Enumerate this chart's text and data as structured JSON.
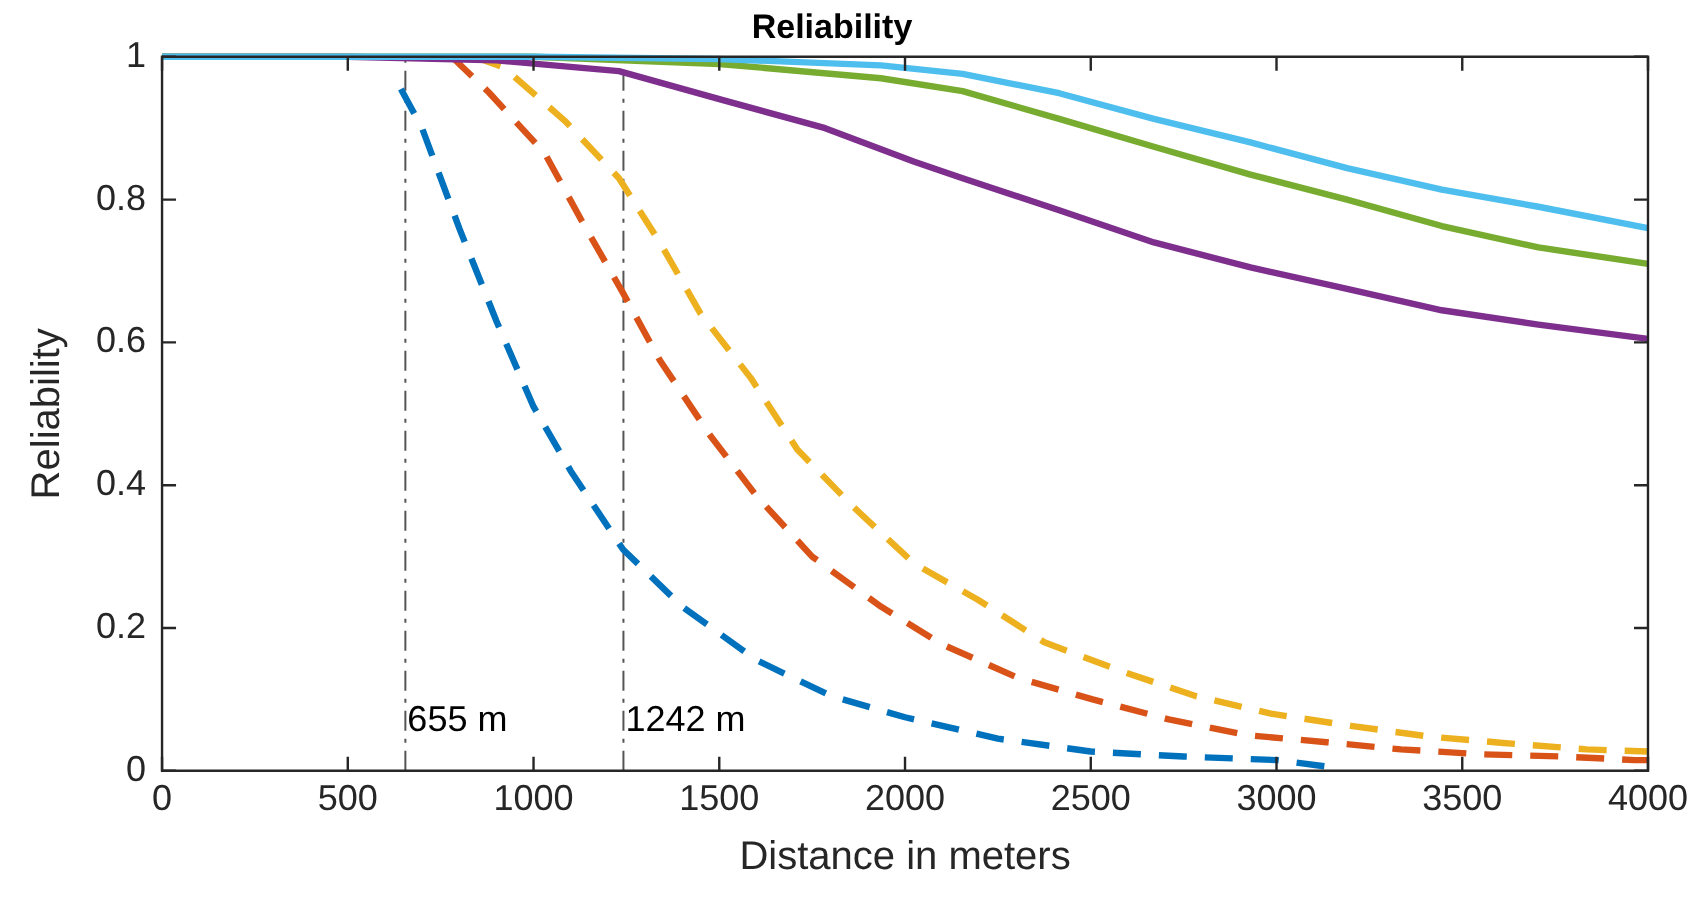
{
  "chart_data": {
    "type": "line",
    "title": "Reliability",
    "xlabel": "Distance in meters",
    "ylabel": "Reliability",
    "xlim": [
      0,
      4000
    ],
    "xticks": [
      0,
      500,
      1000,
      1500,
      2000,
      2500,
      3000,
      3500,
      4000
    ],
    "ylim": [
      0,
      1
    ],
    "yticks": [
      0,
      0.2,
      0.4,
      0.6,
      0.8,
      1
    ],
    "grid": false,
    "legend": false,
    "ref_lines": [
      {
        "axis": "x",
        "value": 655,
        "label": "655 m",
        "color": "#555555",
        "line_style": "dashdot"
      },
      {
        "axis": "x",
        "value": 1242,
        "label": "1242 m",
        "color": "#555555",
        "line_style": "dashdot"
      }
    ],
    "series": [
      {
        "color": "#0072bd",
        "line_style": "dashed",
        "x": [
          643,
          700,
          800,
          900,
          1000,
          1100,
          1241,
          1400,
          1600,
          1800,
          2000,
          2250,
          2500,
          2750,
          3000,
          3150
        ],
        "values": [
          0.955,
          0.9,
          0.76,
          0.63,
          0.51,
          0.42,
          0.31,
          0.23,
          0.155,
          0.105,
          0.075,
          0.045,
          0.027,
          0.02,
          0.015,
          0.005
        ]
      },
      {
        "color": "#d95319",
        "line_style": "dashed",
        "x": [
          780,
          880,
          1030,
          1130,
          1240,
          1340,
          1475,
          1600,
          1750,
          1935,
          2100,
          2305,
          2505,
          2710,
          2920,
          3135,
          3335,
          3555,
          3770,
          3965,
          4000
        ],
        "values": [
          1,
          0.95,
          0.865,
          0.77,
          0.67,
          0.575,
          0.47,
          0.385,
          0.3,
          0.23,
          0.177,
          0.13,
          0.1,
          0.072,
          0.05,
          0.04,
          0.03,
          0.023,
          0.02,
          0.015,
          0.015
        ]
      },
      {
        "color": "#edb120",
        "line_style": "dashed",
        "x": [
          840,
          920,
          1085,
          1230,
          1340,
          1450,
          1585,
          1710,
          1860,
          2025,
          2195,
          2375,
          2580,
          2780,
          2985,
          3200,
          3410,
          3610,
          3835,
          4000
        ],
        "values": [
          1,
          0.985,
          0.91,
          0.83,
          0.74,
          0.64,
          0.55,
          0.45,
          0.37,
          0.29,
          0.24,
          0.18,
          0.14,
          0.105,
          0.08,
          0.063,
          0.048,
          0.039,
          0.03,
          0.027
        ]
      },
      {
        "color": "#7e2f8e",
        "line_style": "solid",
        "x": [
          0,
          500,
          900,
          1230,
          1505,
          1785,
          2025,
          2155,
          2415,
          2670,
          2930,
          3190,
          3445,
          3705,
          4000
        ],
        "values": [
          1,
          1,
          0.995,
          0.98,
          0.94,
          0.9,
          0.853,
          0.83,
          0.785,
          0.74,
          0.705,
          0.675,
          0.645,
          0.625,
          0.605
        ]
      },
      {
        "color": "#77ac30",
        "line_style": "solid",
        "x": [
          0,
          500,
          1000,
          1500,
          1935,
          2155,
          2415,
          2670,
          2930,
          3190,
          3445,
          3705,
          4000
        ],
        "values": [
          1,
          1,
          1,
          0.99,
          0.97,
          0.952,
          0.913,
          0.874,
          0.835,
          0.8,
          0.763,
          0.733,
          0.71
        ]
      },
      {
        "color": "#4dbeee",
        "line_style": "solid",
        "x": [
          0,
          500,
          1000,
          1500,
          1935,
          2155,
          2415,
          2670,
          2930,
          3190,
          3445,
          3705,
          4000
        ],
        "values": [
          1,
          1,
          1,
          0.997,
          0.988,
          0.976,
          0.949,
          0.913,
          0.88,
          0.844,
          0.814,
          0.79,
          0.76
        ]
      }
    ]
  }
}
